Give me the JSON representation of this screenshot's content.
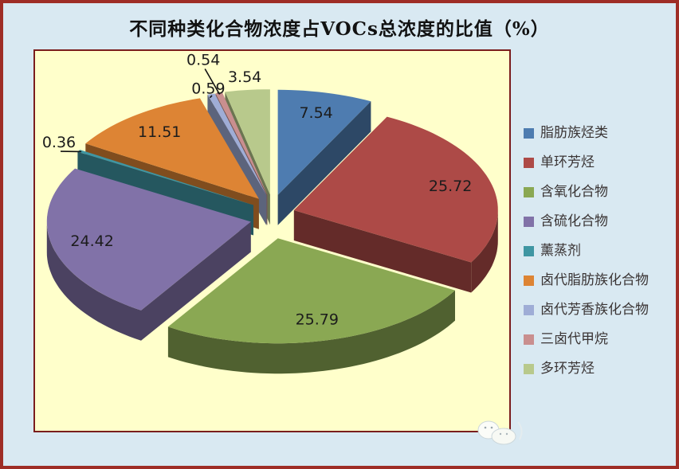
{
  "page": {
    "background_color": "#d9e9f2",
    "frame_color": "#9e2d26"
  },
  "chart_data": {
    "type": "pie",
    "style": "3d-exploded",
    "title": "不同种类化合物浓度占VOCs总浓度的比值（%）",
    "unit": "%",
    "legend_position": "right",
    "direction": "clockwise",
    "start_angle_deg": 0,
    "plot_bg": "#ffffcb",
    "plot_border_color": "#7a1d1d",
    "label_color": "#1c1c1c",
    "slices": [
      {
        "label": "脂肪族烃类",
        "value": 7.54,
        "color": "#4e7cb0"
      },
      {
        "label": "单环芳烃",
        "value": 25.72,
        "color": "#ad4a47"
      },
      {
        "label": "含氧化合物",
        "value": 25.79,
        "color": "#8aa853"
      },
      {
        "label": "含硫化合物",
        "value": 24.42,
        "color": "#8172a8"
      },
      {
        "label": "薰蒸剂",
        "value": 0.36,
        "color": "#3f96a3"
      },
      {
        "label": "卤代脂肪族化合物",
        "value": 11.51,
        "color": "#dd8434"
      },
      {
        "label": "卤代芳香族化合物",
        "value": 0.59,
        "color": "#9fadd6"
      },
      {
        "label": "三卤代甲烷",
        "value": 0.54,
        "color": "#c98f8f"
      },
      {
        "label": "多环芳烃",
        "value": 3.54,
        "color": "#b8c98c"
      }
    ]
  }
}
